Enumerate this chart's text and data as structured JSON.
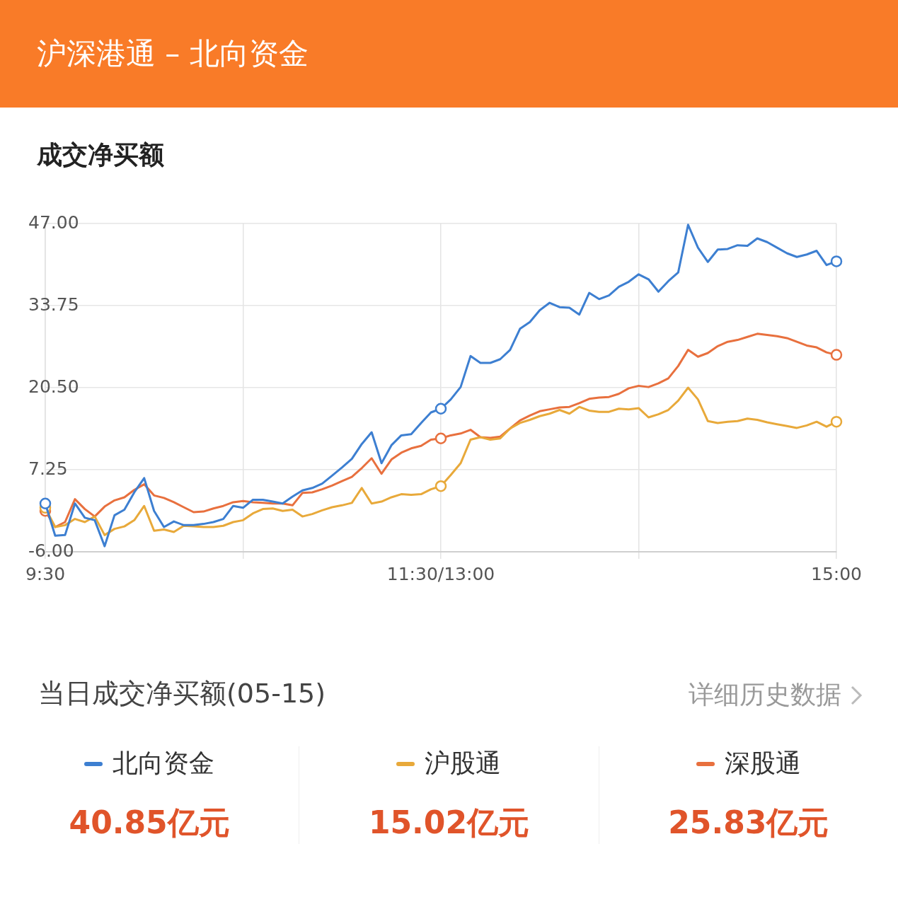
{
  "chart_data": {
    "type": "line",
    "title": "沪深港通 – 北向资金",
    "subtitle": "成交净买额",
    "legend_title": "当日成交净买额(05-15)",
    "legend": "bottom",
    "grid": true,
    "line_style": "solid",
    "categories": [
      "9:30",
      null,
      null,
      null,
      null,
      null,
      null,
      null,
      null,
      null,
      null,
      null,
      null,
      null,
      null,
      null,
      null,
      null,
      null,
      null,
      null,
      null,
      null,
      null,
      null,
      null,
      null,
      null,
      null,
      null,
      null,
      null,
      null,
      null,
      null,
      null,
      null,
      null,
      null,
      null,
      "11:30/13:00",
      null,
      null,
      null,
      null,
      null,
      null,
      null,
      null,
      null,
      null,
      null,
      null,
      null,
      null,
      null,
      null,
      null,
      null,
      null,
      null,
      null,
      null,
      null,
      null,
      null,
      null,
      null,
      null,
      null,
      null,
      null,
      null,
      null,
      null,
      null,
      null,
      null,
      null,
      null,
      "15:00"
    ],
    "ylim": [
      -6,
      47
    ],
    "yticks": [
      {
        "value": 47,
        "label": "47.00"
      },
      {
        "value": 33.75,
        "label": "33.75"
      },
      {
        "value": 20.5,
        "label": "20.50"
      },
      {
        "value": 7.25,
        "label": "7.25"
      },
      {
        "value": -6,
        "label": "-6.00"
      }
    ],
    "annotations": [
      "详细历史数据",
      "40.85亿元",
      "15.02亿元",
      "25.83亿元"
    ],
    "series": [
      {
        "name": "北向资金",
        "color": "#3d7fd1",
        "values": [
          1.8,
          -3.4,
          -3.3,
          1.8,
          -0.5,
          -0.9,
          -5.1,
          -0.1,
          0.8,
          3.6,
          5.9,
          0.6,
          -2.0,
          -1.1,
          -1.7,
          -1.7,
          -1.5,
          -1.2,
          -0.7,
          1.4,
          1.1,
          2.4,
          2.4,
          2.1,
          1.8,
          2.9,
          3.9,
          4.3,
          5.0,
          6.3,
          7.6,
          9.0,
          11.4,
          13.3,
          8.3,
          11.2,
          12.8,
          13.0,
          14.8,
          16.5,
          17.1,
          18.6,
          20.6,
          25.6,
          24.5,
          24.5,
          25.1,
          26.6,
          30.0,
          31.1,
          33.0,
          34.2,
          33.5,
          33.4,
          32.3,
          35.8,
          34.8,
          35.4,
          36.8,
          37.6,
          38.8,
          38.0,
          36.0,
          37.7,
          39.1,
          46.8,
          43.1,
          40.8,
          42.8,
          42.9,
          43.5,
          43.4,
          44.6,
          44.0,
          43.1,
          42.2,
          41.6,
          42.0,
          42.6,
          40.3,
          40.9
        ]
      },
      {
        "name": "沪股通",
        "color": "#e8a93a",
        "values": [
          1.1,
          -2.0,
          -1.7,
          -0.7,
          -1.2,
          -0.3,
          -3.3,
          -2.3,
          -1.9,
          -0.9,
          1.4,
          -2.6,
          -2.4,
          -2.8,
          -1.8,
          -1.9,
          -2.0,
          -2.0,
          -1.8,
          -1.2,
          -0.9,
          0.2,
          0.9,
          1.0,
          0.6,
          0.8,
          -0.3,
          0.1,
          0.7,
          1.2,
          1.5,
          1.9,
          4.3,
          1.8,
          2.1,
          2.8,
          3.3,
          3.2,
          3.3,
          4.1,
          4.6,
          6.4,
          8.3,
          12.1,
          12.5,
          12.1,
          12.3,
          13.9,
          14.8,
          15.3,
          15.9,
          16.3,
          16.9,
          16.3,
          17.4,
          16.8,
          16.6,
          16.6,
          17.1,
          17.0,
          17.2,
          15.7,
          16.2,
          16.9,
          18.4,
          20.5,
          18.6,
          15.1,
          14.8,
          15.0,
          15.1,
          15.5,
          15.3,
          14.9,
          14.6,
          14.3,
          14.0,
          14.4,
          15.0,
          14.2,
          15.0
        ]
      },
      {
        "name": "深股通",
        "color": "#e8703e",
        "values": [
          0.6,
          -2.0,
          -1.2,
          2.5,
          0.9,
          -0.3,
          1.3,
          2.3,
          2.8,
          4.0,
          4.9,
          3.1,
          2.7,
          2.0,
          1.2,
          0.4,
          0.5,
          1.0,
          1.4,
          2.0,
          2.2,
          2.0,
          1.9,
          1.8,
          1.8,
          1.5,
          3.5,
          3.6,
          4.1,
          4.7,
          5.4,
          6.1,
          7.5,
          9.1,
          6.6,
          8.9,
          10.0,
          10.7,
          11.1,
          12.1,
          12.3,
          12.8,
          13.1,
          13.7,
          12.5,
          12.4,
          12.6,
          13.9,
          15.2,
          16.0,
          16.7,
          17.0,
          17.3,
          17.4,
          18.0,
          18.7,
          18.9,
          19.0,
          19.5,
          20.4,
          20.8,
          20.6,
          21.2,
          22.0,
          24.0,
          26.6,
          25.5,
          26.1,
          27.2,
          27.9,
          28.2,
          28.7,
          29.2,
          29.0,
          28.8,
          28.5,
          27.9,
          27.3,
          27.0,
          26.2,
          25.8
        ]
      }
    ]
  }
}
